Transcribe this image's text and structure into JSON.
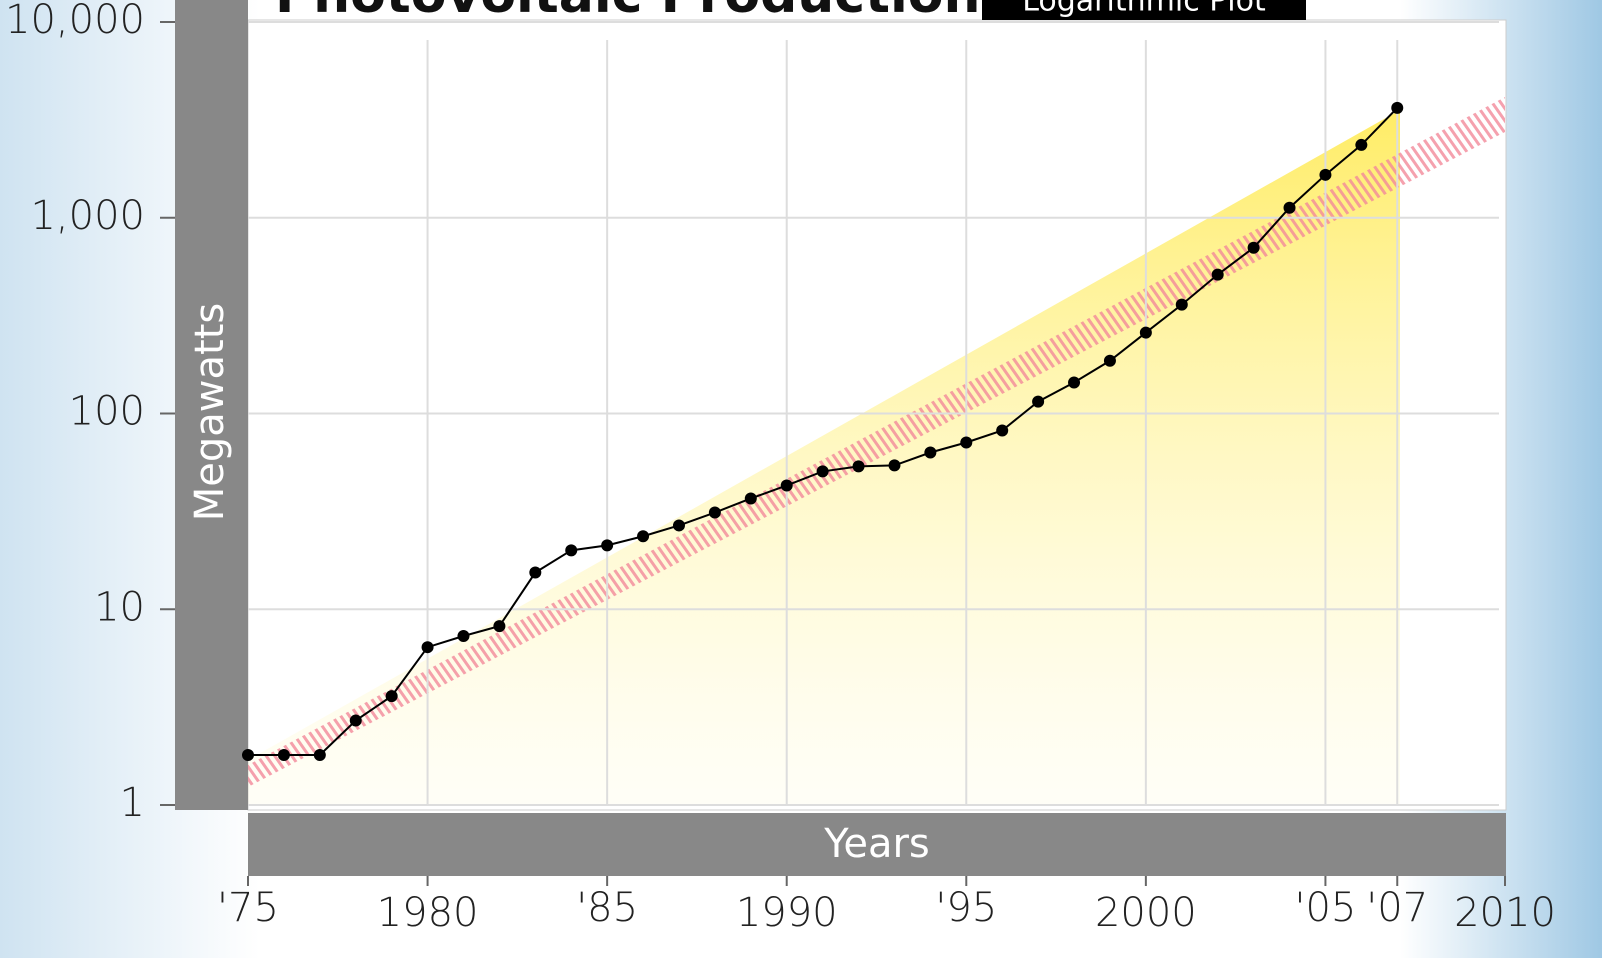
{
  "chart_data": {
    "type": "line",
    "title": "Photovoltaic Production",
    "subtitle": "Logarithmic Plot",
    "x_label": "Years",
    "y_label": "Megawatts",
    "log_y": true,
    "grid": true,
    "x": [
      1975,
      1976,
      1977,
      1978,
      1979,
      1980,
      1981,
      1982,
      1983,
      1984,
      1985,
      1986,
      1987,
      1988,
      1989,
      1990,
      1991,
      1992,
      1993,
      1994,
      1995,
      1996,
      1997,
      1998,
      1999,
      2000,
      2001,
      2002,
      2003,
      2004,
      2005,
      2006,
      2007
    ],
    "series": [
      {
        "color": "#000000",
        "values": [
          1.8,
          1.8,
          1.8,
          2.7,
          3.6,
          6.4,
          7.3,
          8.2,
          15.4,
          20,
          21.2,
          23.6,
          26.8,
          31.2,
          36.8,
          42.9,
          50.6,
          53.7,
          54.3,
          63.2,
          71.1,
          81.9,
          115,
          144,
          186,
          259,
          360,
          512,
          703,
          1125,
          1657,
          2355,
          3640
        ]
      }
    ],
    "xlim": [
      1975,
      2010
    ],
    "xticks": [
      {
        "value": 1975,
        "label": "'75"
      },
      1980,
      {
        "value": 1985,
        "label": "'85"
      },
      1990,
      {
        "value": 1995,
        "label": "'95"
      },
      2000,
      {
        "value": 2005,
        "label": "'05"
      },
      {
        "value": 2007,
        "label": "'07"
      },
      2010
    ],
    "ylim": [
      1,
      10000
    ],
    "yticks": [
      1,
      10,
      100,
      {
        "value": 1000,
        "label": "1,000"
      },
      {
        "value": 10000,
        "label": "10,000"
      }
    ]
  }
}
